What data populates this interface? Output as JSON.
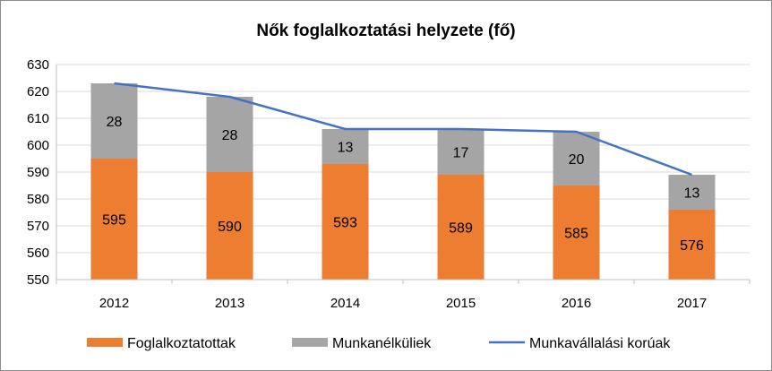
{
  "chart_data": {
    "type": "bar",
    "title": "Nők foglalkoztatási helyzete (fő)",
    "categories": [
      "2012",
      "2013",
      "2014",
      "2015",
      "2016",
      "2017"
    ],
    "series": [
      {
        "name": "Foglalkoztatottak",
        "kind": "stacked-bar",
        "color": "#ED7D31",
        "values": [
          595,
          590,
          593,
          589,
          585,
          576
        ]
      },
      {
        "name": "Munkanélküliek",
        "kind": "stacked-bar",
        "color": "#A5A5A5",
        "values": [
          28,
          28,
          13,
          17,
          20,
          13
        ]
      },
      {
        "name": "Munkavállalási korúak",
        "kind": "line",
        "color": "#4472C4",
        "values": [
          623,
          618,
          606,
          606,
          605,
          589
        ]
      }
    ],
    "ylim": [
      550,
      630
    ],
    "yticks": [
      "550",
      "560",
      "570",
      "580",
      "590",
      "600",
      "610",
      "620",
      "630"
    ],
    "grid": true,
    "legend_position": "bottom"
  }
}
